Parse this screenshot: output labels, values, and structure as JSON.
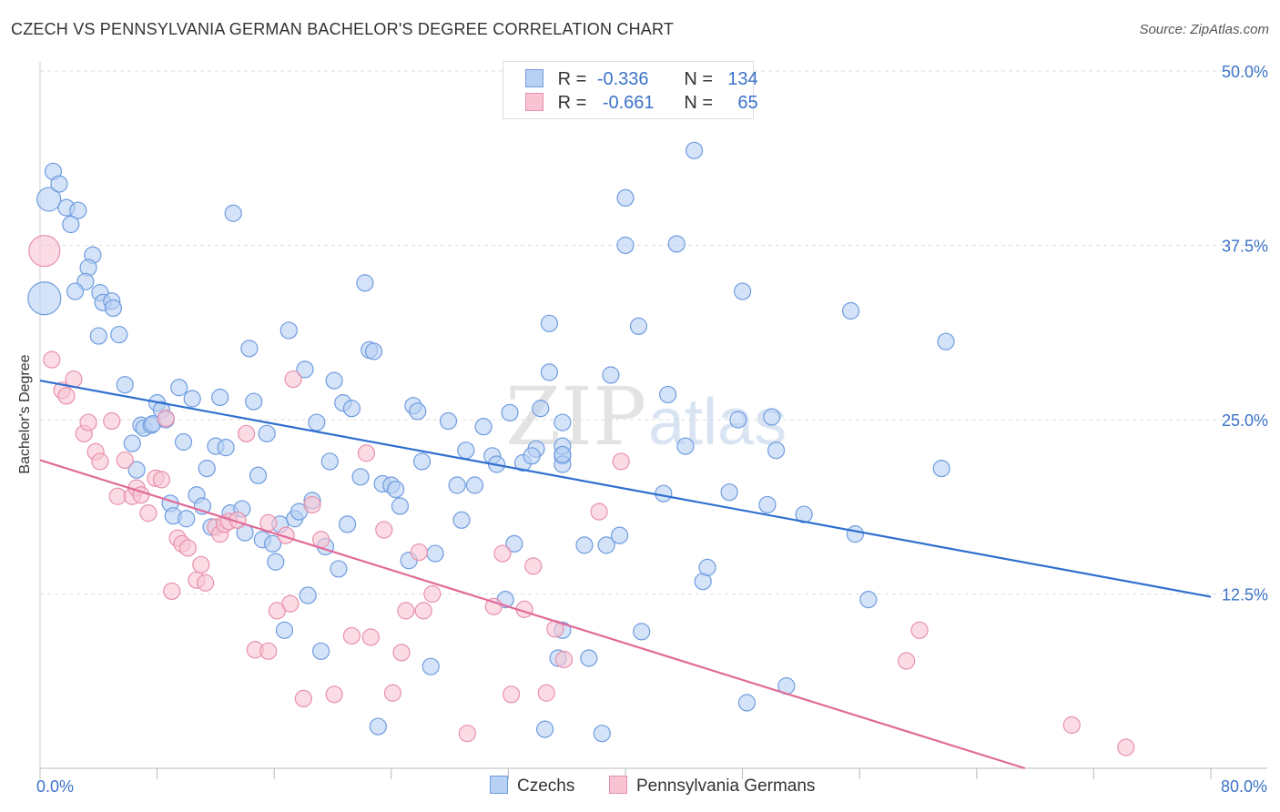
{
  "title": "CZECH VS PENNSYLVANIA GERMAN BACHELOR'S DEGREE CORRELATION CHART",
  "source": "Source: ZipAtlas.com",
  "watermark": {
    "zip": "ZIP",
    "atlas": "atlas"
  },
  "legend": {
    "r_label": "R =",
    "n_label": "N =",
    "rows": [
      {
        "r": "-0.336",
        "n": "134",
        "fill": "#b7d0f3",
        "stroke": "#6f9ce0"
      },
      {
        "r": "-0.661",
        "n": "65",
        "fill": "#f8c4d4",
        "stroke": "#e890ab"
      }
    ]
  },
  "chart_data": {
    "type": "scatter",
    "ylabel": "Bachelor's Degree",
    "xlim": [
      0,
      80
    ],
    "ylim": [
      0,
      50
    ],
    "x_tick_labels": [
      {
        "value": 0,
        "label": "0.0%"
      },
      {
        "value": 80,
        "label": "80.0%"
      }
    ],
    "y_tick_labels": [
      {
        "value": 12.5,
        "label": "12.5%"
      },
      {
        "value": 25,
        "label": "25.0%"
      },
      {
        "value": 37.5,
        "label": "37.5%"
      },
      {
        "value": 50,
        "label": "50.0%"
      }
    ],
    "grid": "horizontal dashed",
    "legend_position": "bottom",
    "series": [
      {
        "name": "Czechs",
        "color": "#6f9ce0",
        "fill": "#b7d0f3",
        "line_color": "#2f6fcf",
        "trend": [
          [
            0,
            27.8
          ],
          [
            80,
            12.3
          ]
        ],
        "points": [
          [
            0.3,
            33.7
          ],
          [
            0.6,
            40.8
          ],
          [
            0.9,
            42.8
          ],
          [
            1.3,
            41.9
          ],
          [
            1.8,
            40.2
          ],
          [
            2.6,
            40.0
          ],
          [
            2.1,
            39.0
          ],
          [
            3.6,
            36.8
          ],
          [
            3.3,
            35.9
          ],
          [
            3.1,
            34.9
          ],
          [
            2.4,
            34.2
          ],
          [
            4.1,
            34.1
          ],
          [
            4.3,
            33.4
          ],
          [
            4.9,
            33.5
          ],
          [
            5.0,
            33.0
          ],
          [
            4.0,
            31.0
          ],
          [
            5.4,
            31.1
          ],
          [
            5.8,
            27.5
          ],
          [
            6.3,
            23.3
          ],
          [
            6.6,
            21.4
          ],
          [
            6.9,
            24.6
          ],
          [
            7.1,
            24.4
          ],
          [
            7.6,
            24.6
          ],
          [
            7.7,
            24.7
          ],
          [
            8.0,
            26.2
          ],
          [
            8.3,
            25.7
          ],
          [
            8.6,
            25.0
          ],
          [
            8.9,
            19.0
          ],
          [
            9.1,
            18.1
          ],
          [
            9.5,
            27.3
          ],
          [
            9.8,
            23.4
          ],
          [
            10.0,
            17.9
          ],
          [
            10.4,
            26.5
          ],
          [
            10.7,
            19.6
          ],
          [
            11.1,
            18.8
          ],
          [
            11.4,
            21.5
          ],
          [
            11.7,
            17.3
          ],
          [
            12.0,
            23.1
          ],
          [
            12.3,
            26.6
          ],
          [
            12.7,
            23.0
          ],
          [
            13.0,
            18.3
          ],
          [
            13.2,
            39.8
          ],
          [
            13.8,
            18.6
          ],
          [
            14.0,
            16.9
          ],
          [
            14.3,
            30.1
          ],
          [
            14.6,
            26.3
          ],
          [
            14.9,
            21.0
          ],
          [
            15.2,
            16.4
          ],
          [
            15.5,
            24.0
          ],
          [
            15.9,
            16.1
          ],
          [
            16.1,
            14.8
          ],
          [
            16.4,
            17.5
          ],
          [
            16.7,
            9.9
          ],
          [
            17.0,
            31.4
          ],
          [
            17.4,
            17.9
          ],
          [
            17.7,
            18.4
          ],
          [
            18.1,
            28.6
          ],
          [
            18.3,
            12.4
          ],
          [
            18.6,
            19.2
          ],
          [
            18.9,
            24.8
          ],
          [
            19.2,
            8.4
          ],
          [
            19.5,
            15.9
          ],
          [
            19.8,
            22.0
          ],
          [
            20.1,
            27.8
          ],
          [
            20.4,
            14.3
          ],
          [
            20.7,
            26.2
          ],
          [
            21.0,
            17.5
          ],
          [
            21.3,
            25.8
          ],
          [
            21.9,
            20.9
          ],
          [
            22.2,
            34.8
          ],
          [
            22.5,
            30.0
          ],
          [
            22.8,
            29.9
          ],
          [
            23.1,
            3.0
          ],
          [
            23.4,
            20.4
          ],
          [
            24.0,
            20.3
          ],
          [
            24.3,
            20.0
          ],
          [
            24.6,
            18.8
          ],
          [
            25.2,
            14.9
          ],
          [
            25.5,
            26.0
          ],
          [
            25.8,
            25.6
          ],
          [
            26.1,
            22.0
          ],
          [
            26.7,
            7.3
          ],
          [
            27.0,
            15.4
          ],
          [
            27.9,
            24.9
          ],
          [
            28.5,
            20.3
          ],
          [
            28.8,
            17.8
          ],
          [
            29.1,
            22.8
          ],
          [
            29.7,
            20.3
          ],
          [
            30.3,
            24.5
          ],
          [
            30.9,
            22.4
          ],
          [
            31.2,
            21.8
          ],
          [
            31.8,
            12.1
          ],
          [
            32.1,
            25.5
          ],
          [
            32.4,
            16.1
          ],
          [
            33.0,
            21.9
          ],
          [
            33.9,
            22.9
          ],
          [
            33.6,
            22.4
          ],
          [
            34.2,
            25.8
          ],
          [
            34.5,
            2.8
          ],
          [
            34.8,
            28.4
          ],
          [
            34.8,
            31.9
          ],
          [
            35.7,
            9.9
          ],
          [
            35.4,
            7.9
          ],
          [
            35.7,
            24.8
          ],
          [
            35.7,
            22.4
          ],
          [
            35.7,
            23.1
          ],
          [
            35.7,
            21.8
          ],
          [
            35.7,
            22.5
          ],
          [
            37.2,
            16.0
          ],
          [
            38.4,
            2.5
          ],
          [
            38.7,
            16.0
          ],
          [
            37.5,
            7.9
          ],
          [
            39.0,
            28.2
          ],
          [
            39.6,
            16.7
          ],
          [
            40.0,
            37.5
          ],
          [
            40.0,
            40.9
          ],
          [
            40.9,
            31.7
          ],
          [
            41.1,
            9.8
          ],
          [
            42.6,
            19.7
          ],
          [
            42.9,
            26.8
          ],
          [
            43.5,
            37.6
          ],
          [
            44.1,
            23.1
          ],
          [
            44.7,
            44.3
          ],
          [
            45.3,
            13.4
          ],
          [
            45.6,
            14.4
          ],
          [
            47.1,
            19.8
          ],
          [
            47.7,
            25.0
          ],
          [
            48.0,
            34.2
          ],
          [
            48.3,
            4.7
          ],
          [
            49.7,
            18.9
          ],
          [
            50.0,
            25.2
          ],
          [
            50.3,
            22.8
          ],
          [
            51.0,
            5.9
          ],
          [
            52.2,
            18.2
          ],
          [
            55.7,
            16.8
          ],
          [
            55.4,
            32.8
          ],
          [
            56.6,
            12.1
          ],
          [
            61.6,
            21.5
          ],
          [
            61.9,
            30.6
          ]
        ]
      },
      {
        "name": "Pennsylvania Germans",
        "color": "#e890ab",
        "fill": "#f8c4d4",
        "line_color": "#e06a98",
        "trend": [
          [
            0,
            22.1
          ],
          [
            67.3,
            0
          ]
        ],
        "points": [
          [
            0.3,
            37.1
          ],
          [
            0.8,
            29.3
          ],
          [
            1.5,
            27.1
          ],
          [
            1.8,
            26.7
          ],
          [
            2.3,
            27.9
          ],
          [
            3.0,
            24.0
          ],
          [
            3.3,
            24.8
          ],
          [
            3.8,
            22.7
          ],
          [
            4.1,
            22.0
          ],
          [
            4.9,
            24.9
          ],
          [
            5.3,
            19.5
          ],
          [
            5.8,
            22.1
          ],
          [
            6.3,
            19.5
          ],
          [
            6.6,
            20.1
          ],
          [
            6.9,
            19.6
          ],
          [
            7.4,
            18.3
          ],
          [
            7.9,
            20.8
          ],
          [
            8.3,
            20.7
          ],
          [
            8.6,
            25.1
          ],
          [
            9.0,
            12.7
          ],
          [
            9.4,
            16.5
          ],
          [
            9.7,
            16.1
          ],
          [
            10.1,
            15.8
          ],
          [
            10.7,
            13.5
          ],
          [
            11.0,
            14.6
          ],
          [
            11.3,
            13.3
          ],
          [
            12.0,
            17.3
          ],
          [
            12.3,
            16.8
          ],
          [
            12.6,
            17.5
          ],
          [
            12.9,
            17.7
          ],
          [
            13.5,
            17.8
          ],
          [
            14.1,
            24.0
          ],
          [
            14.7,
            8.5
          ],
          [
            15.6,
            8.4
          ],
          [
            15.6,
            17.6
          ],
          [
            16.2,
            11.3
          ],
          [
            16.8,
            16.7
          ],
          [
            17.1,
            11.8
          ],
          [
            17.3,
            27.9
          ],
          [
            18.0,
            5.0
          ],
          [
            18.6,
            18.9
          ],
          [
            19.2,
            16.4
          ],
          [
            20.1,
            5.3
          ],
          [
            21.3,
            9.5
          ],
          [
            22.3,
            22.6
          ],
          [
            22.6,
            9.4
          ],
          [
            23.5,
            17.1
          ],
          [
            24.1,
            5.4
          ],
          [
            24.7,
            8.3
          ],
          [
            25.0,
            11.3
          ],
          [
            25.9,
            15.5
          ],
          [
            26.2,
            11.3
          ],
          [
            26.8,
            12.5
          ],
          [
            29.2,
            2.5
          ],
          [
            31.0,
            11.6
          ],
          [
            31.6,
            15.4
          ],
          [
            32.2,
            5.3
          ],
          [
            33.1,
            11.4
          ],
          [
            33.7,
            14.5
          ],
          [
            34.6,
            5.4
          ],
          [
            35.2,
            10.0
          ],
          [
            35.8,
            7.8
          ],
          [
            38.2,
            18.4
          ],
          [
            39.7,
            22.0
          ],
          [
            59.2,
            7.7
          ],
          [
            60.1,
            9.9
          ],
          [
            70.5,
            3.1
          ],
          [
            74.2,
            1.5
          ]
        ]
      }
    ]
  }
}
